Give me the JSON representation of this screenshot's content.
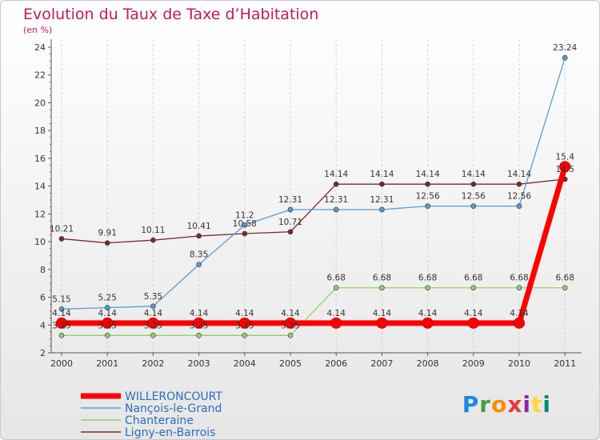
{
  "chart_data": {
    "type": "line",
    "title": "Evolution du Taux de Taxe d’Habitation",
    "subtitle": "(en %)",
    "x": [
      2000,
      2001,
      2002,
      2003,
      2004,
      2005,
      2006,
      2007,
      2008,
      2009,
      2010,
      2011
    ],
    "ylim": [
      2,
      24
    ],
    "yticks": [
      2,
      4,
      6,
      8,
      10,
      12,
      14,
      16,
      18,
      20,
      22,
      24
    ],
    "grid": "vertical dashed",
    "legend": "bottom-left",
    "series": [
      {
        "name": "WILLERONCOURT",
        "color": "#ff0000",
        "values": [
          4.14,
          4.14,
          4.14,
          4.14,
          4.14,
          4.14,
          4.14,
          4.14,
          4.14,
          4.14,
          4.14,
          15.4
        ],
        "labels": [
          "4.14",
          "4.14",
          "4.14",
          "4.14",
          "4.14",
          "4.14",
          "4.14",
          "4.14",
          "4.14",
          "4.14",
          "4.14",
          "15.4"
        ]
      },
      {
        "name": "Nançois-le-Grand",
        "color": "#5b9bd5",
        "values": [
          5.15,
          5.25,
          5.35,
          8.35,
          11.2,
          12.31,
          12.31,
          12.31,
          12.56,
          12.56,
          12.56,
          23.24
        ],
        "labels": [
          "5.15",
          "5.25",
          "5.35",
          "8.35",
          "11.2",
          "12.31",
          "12.31",
          "12.31",
          "12.56",
          "12.56",
          "12.56",
          "23.24"
        ]
      },
      {
        "name": "Chanteraine",
        "color": "#8fd16a",
        "values": [
          3.25,
          3.25,
          3.25,
          3.25,
          3.25,
          3.25,
          6.68,
          6.68,
          6.68,
          6.68,
          6.68,
          6.68
        ],
        "labels": [
          "3.25",
          "3.25",
          "3.25",
          "3.25",
          "3.25",
          "3.25",
          "6.68",
          "6.68",
          "6.68",
          "6.68",
          "6.68",
          "6.68"
        ]
      },
      {
        "name": "Ligny-en-Barrois",
        "color": "#7a2a2a",
        "values": [
          10.21,
          9.91,
          10.11,
          10.41,
          10.58,
          10.71,
          14.14,
          14.14,
          14.14,
          14.14,
          14.14,
          14.5
        ],
        "labels": [
          "10.21",
          "9.91",
          "10.11",
          "10.41",
          "10.58",
          "10.71",
          "14.14",
          "14.14",
          "14.14",
          "14.14",
          "14.14",
          "14.5"
        ]
      }
    ]
  },
  "logo": {
    "letters": [
      "P",
      "r",
      "o",
      "x",
      "i",
      "t",
      "i"
    ],
    "colors": [
      "#1e88e5",
      "#43a047",
      "#fb8c00",
      "#e53935",
      "#8e24aa",
      "#fdd835",
      "#00897b"
    ]
  }
}
